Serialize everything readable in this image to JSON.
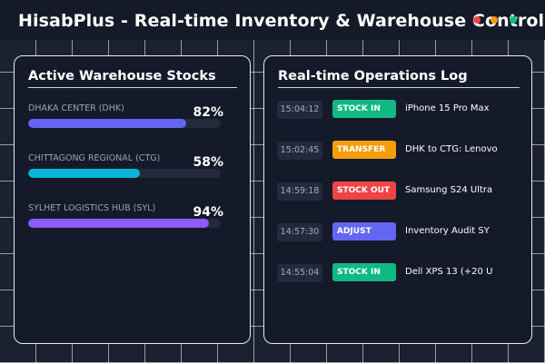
{
  "app": {
    "title": "HisabPlus - Real-time Inventory & Warehouse Control",
    "window_dots": [
      "#ef4444",
      "#f59e0b",
      "#10b981"
    ]
  },
  "warehouses": {
    "title": "Active Warehouse Stocks",
    "items": [
      {
        "name": "DHAKA CENTER (DHK)",
        "percent": "82%",
        "level": 82,
        "color": "#6366f1"
      },
      {
        "name": "CHITTAGONG REGIONAL (CTG)",
        "percent": "58%",
        "level": 58,
        "color": "#06b6d4"
      },
      {
        "name": "SYLHET LOGISTICS HUB (SYL)",
        "percent": "94%",
        "level": 94,
        "color": "#8b5cf6"
      }
    ]
  },
  "operations": {
    "title": "Real-time Operations Log",
    "entries": [
      {
        "time": "15:04:12",
        "type": "STOCK IN",
        "type_color": "#10b981",
        "description": "iPhone 15 Pro Max"
      },
      {
        "time": "15:02:45",
        "type": "TRANSFER",
        "type_color": "#f59e0b",
        "description": "DHK to CTG: Lenovo"
      },
      {
        "time": "14:59:18",
        "type": "STOCK OUT",
        "type_color": "#ef4444",
        "description": "Samsung S24 Ultra"
      },
      {
        "time": "14:57:30",
        "type": "ADJUST",
        "type_color": "#6366f1",
        "description": "Inventory Audit SY"
      },
      {
        "time": "14:55:04",
        "type": "STOCK IN",
        "type_color": "#10b981",
        "description": "Dell XPS 13 (+20 U"
      }
    ]
  }
}
